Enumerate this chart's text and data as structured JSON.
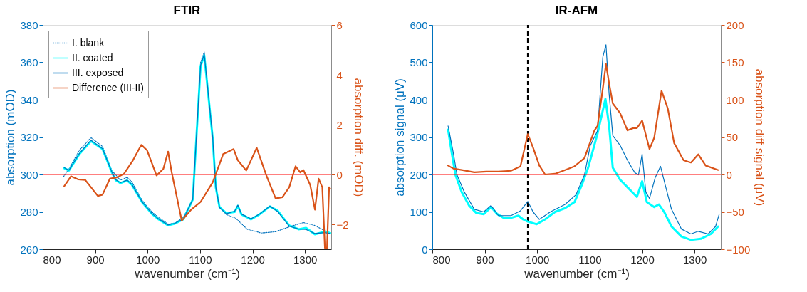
{
  "chart_data": [
    {
      "type": "line",
      "title": "FTIR",
      "xlabel": "wavenumber (cm⁻¹)",
      "ylabel": "absorption (mOD)",
      "y2label": "absorption diff. (mOD)",
      "xlim": [
        800,
        1350
      ],
      "xticks": [
        800,
        900,
        1000,
        1100,
        1200,
        1300
      ],
      "ylim": [
        260,
        380
      ],
      "yticks": [
        260,
        280,
        300,
        320,
        340,
        360,
        380
      ],
      "y2lim": [
        -3,
        6
      ],
      "y2ticks": [
        -2,
        0,
        2,
        4,
        6
      ],
      "legend": "top left",
      "series": [
        {
          "name": "I. blank",
          "color": "#0072bd",
          "line_style": "dotted",
          "x": [
            840,
            850,
            870,
            892,
            914,
            932,
            948,
            961,
            970,
            990,
            1008,
            1021,
            1039,
            1052,
            1068,
            1086,
            1101,
            1108,
            1124,
            1130,
            1137,
            1150,
            1168,
            1190,
            1217,
            1244,
            1270,
            1297,
            1319,
            1341,
            1348
          ],
          "values": [
            299,
            303,
            313,
            319.7,
            315,
            302,
            297,
            298.5,
            296,
            286,
            280,
            277,
            273.5,
            274,
            277,
            287,
            360,
            365.5,
            320,
            293.5,
            283,
            278.6,
            276.6,
            270.7,
            268.7,
            269.4,
            272,
            274.3,
            272.7,
            269.4,
            268.7
          ]
        },
        {
          "name": "II. coated",
          "color": "#00ffff",
          "line_style": "solid",
          "x": [
            841,
            850,
            870,
            892,
            914,
            932,
            939,
            948,
            961,
            970,
            990,
            1008,
            1021,
            1039,
            1052,
            1068,
            1086,
            1101,
            1108,
            1124,
            1130,
            1137,
            1150,
            1166,
            1172,
            1179,
            1197,
            1213,
            1233,
            1248,
            1270,
            1288,
            1302,
            1319,
            1337,
            1348
          ],
          "values": [
            303.4,
            302.1,
            311,
            317.9,
            313.6,
            301,
            297,
            295.4,
            296.8,
            294.5,
            285,
            279,
            276,
            272.8,
            273.7,
            276,
            286.5,
            358,
            363.7,
            319.5,
            293,
            282.6,
            279.3,
            280,
            283.2,
            278.6,
            276,
            278.6,
            282.9,
            280.6,
            272.7,
            270.7,
            271.4,
            268,
            269.4,
            268.7
          ]
        },
        {
          "name": "III. exposed",
          "color": "#0072bd",
          "line_style": "solid",
          "x": [
            841,
            850,
            870,
            892,
            914,
            932,
            939,
            948,
            961,
            970,
            990,
            1008,
            1021,
            1039,
            1052,
            1068,
            1086,
            1101,
            1108,
            1124,
            1130,
            1137,
            1150,
            1166,
            1172,
            1179,
            1197,
            1213,
            1233,
            1248,
            1270,
            1288,
            1302,
            1319,
            1337,
            1348
          ],
          "values": [
            303.6,
            302.3,
            311.3,
            318.3,
            313.8,
            301.2,
            297.2,
            295.6,
            297,
            294.7,
            285.2,
            279.2,
            276.2,
            273,
            273.9,
            276.2,
            286.7,
            358.5,
            364.3,
            320,
            293.2,
            282.4,
            279,
            280.4,
            283.6,
            278.8,
            276.3,
            278.8,
            283.1,
            280.2,
            272.4,
            270.8,
            270.6,
            268.4,
            268.9,
            268.4
          ]
        },
        {
          "name": "Difference (III-II)",
          "color": "#d95319",
          "line_style": "solid",
          "axis": "y2",
          "x": [
            841,
            854,
            868,
            881,
            892,
            905,
            914,
            928,
            941,
            955,
            972,
            988,
            999,
            1017,
            1030,
            1039,
            1046,
            1065,
            1083,
            1101,
            1124,
            1144,
            1164,
            1172,
            1188,
            1208,
            1226,
            1244,
            1257,
            1270,
            1282,
            1291,
            1297,
            1310,
            1319,
            1326,
            1333,
            1338,
            1342,
            1346,
            1348
          ],
          "values": [
            -0.47,
            -0.07,
            -0.2,
            -0.22,
            -0.51,
            -0.86,
            -0.81,
            -0.17,
            -0.12,
            0.03,
            0.57,
            1.19,
            0.97,
            -0.04,
            0.23,
            0.92,
            0.08,
            -1.85,
            -1.41,
            -1.1,
            -0.32,
            0.82,
            1.02,
            0.57,
            0.16,
            1.07,
            -0.02,
            -0.96,
            -0.91,
            -0.51,
            0.33,
            0.08,
            0.18,
            -0.42,
            -1.41,
            -0.17,
            -0.51,
            -2.95,
            -2.95,
            -0.51,
            -0.56
          ]
        }
      ],
      "ref_lines": [
        {
          "axis": "y2",
          "value": 0,
          "color": "#ff0000",
          "line_style": "solid"
        }
      ]
    },
    {
      "type": "line",
      "title": "IR-AFM",
      "xlabel": "wavenumber (cm⁻¹)",
      "ylabel": "absorption signal (μV)",
      "y2label": "absorption diff signal (μV)",
      "xlim": [
        800,
        1350
      ],
      "xticks": [
        800,
        900,
        1000,
        1100,
        1200,
        1300
      ],
      "ylim": [
        0,
        600
      ],
      "yticks": [
        0,
        100,
        200,
        300,
        400,
        500,
        600
      ],
      "y2lim": [
        -100,
        200
      ],
      "y2ticks": [
        -100,
        -50,
        0,
        50,
        100,
        150,
        200
      ],
      "legend": "top left",
      "series": [
        {
          "name": "II. coated",
          "color": "#00ffff",
          "line_style": "solid",
          "x": [
            830,
            837,
            844,
            856,
            870,
            884,
            898,
            912,
            924,
            936,
            950,
            964,
            973,
            982,
            999,
            1015,
            1034,
            1053,
            1071,
            1085,
            1097,
            1115,
            1130,
            1137,
            1144,
            1158,
            1172,
            1190,
            1200,
            1209,
            1223,
            1232,
            1242,
            1256,
            1275,
            1293,
            1312,
            1331,
            1345
          ],
          "values": [
            320,
            258,
            199,
            153,
            117,
            97,
            94,
            113,
            94,
            84,
            84,
            90,
            80,
            74,
            67,
            80,
            100,
            110,
            126,
            172,
            218,
            310,
            402,
            330,
            218,
            186,
            166,
            140,
            182,
            126,
            113,
            120,
            100,
            61,
            34,
            25,
            28,
            41,
            61
          ]
        },
        {
          "name": "III. exposed",
          "color": "#0072bd",
          "line_style": "solid",
          "x": [
            830,
            840,
            847,
            861,
            880,
            898,
            912,
            926,
            950,
            968,
            982,
            992,
            1004,
            1025,
            1053,
            1074,
            1090,
            1101,
            1115,
            1125,
            1131,
            1137,
            1144,
            1158,
            1172,
            1186,
            1193,
            1200,
            1207,
            1214,
            1225,
            1235,
            1244,
            1256,
            1275,
            1293,
            1307,
            1326,
            1340,
            1347
          ],
          "values": [
            330,
            258,
            199,
            153,
            107,
            100,
            117,
            90,
            90,
            103,
            128,
            100,
            80,
            100,
            120,
            146,
            199,
            277,
            317,
            514,
            547,
            416,
            304,
            278,
            238,
            205,
            199,
            255,
            153,
            136,
            192,
            222,
            172,
            107,
            54,
            41,
            48,
            41,
            61,
            94
          ]
        },
        {
          "name": "Difference (III-II)",
          "color": "#d95319",
          "line_style": "solid",
          "axis": "y2",
          "x": [
            830,
            840,
            856,
            880,
            903,
            926,
            950,
            968,
            982,
            992,
            1004,
            1015,
            1034,
            1053,
            1071,
            1090,
            1109,
            1115,
            1125,
            1131,
            1137,
            1144,
            1158,
            1172,
            1183,
            1190,
            1200,
            1214,
            1223,
            1237,
            1249,
            1261,
            1279,
            1293,
            1307,
            1321,
            1345
          ],
          "values": [
            12,
            8,
            6,
            3,
            4,
            4,
            5,
            11,
            54,
            36,
            12,
            0,
            1,
            6,
            11,
            22,
            59,
            65,
            115,
            148,
            122,
            95,
            82,
            59,
            62,
            62,
            72,
            34,
            49,
            112,
            88,
            42,
            19,
            16,
            27,
            12,
            6
          ]
        }
      ],
      "ref_lines": [
        {
          "axis": "y2",
          "value": 0,
          "color": "#ff0000",
          "line_style": "solid"
        },
        {
          "axis": "x",
          "value": 982,
          "color": "#000000",
          "line_style": "dashed"
        }
      ]
    }
  ]
}
